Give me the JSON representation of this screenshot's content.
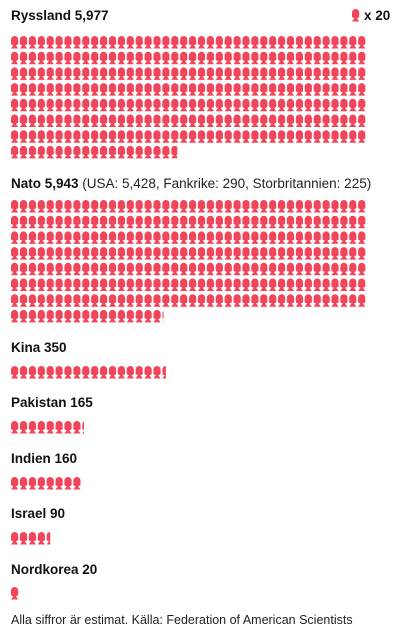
{
  "chart_data": {
    "type": "pictogram",
    "unit": 20,
    "legend_text": "x 20",
    "icon": "warhead-icon",
    "icon_color": "#f0455a",
    "categories": [
      {
        "name": "Ryssland",
        "value": 5977,
        "value_label": "5,977",
        "detail": ""
      },
      {
        "name": "Nato",
        "value": 5943,
        "value_label": "5,943",
        "detail": "(USA: 5,428, Fankrike: 290, Storbritannien: 225)"
      },
      {
        "name": "Kina",
        "value": 350,
        "value_label": "350",
        "detail": ""
      },
      {
        "name": "Pakistan",
        "value": 165,
        "value_label": "165",
        "detail": ""
      },
      {
        "name": "Indien",
        "value": 160,
        "value_label": "160",
        "detail": ""
      },
      {
        "name": "Israel",
        "value": 90,
        "value_label": "90",
        "detail": ""
      },
      {
        "name": "Nordkorea",
        "value": 20,
        "value_label": "20",
        "detail": ""
      }
    ],
    "footnote": "Alla siffror är estimat. Källa: Federation of American Scientists"
  }
}
